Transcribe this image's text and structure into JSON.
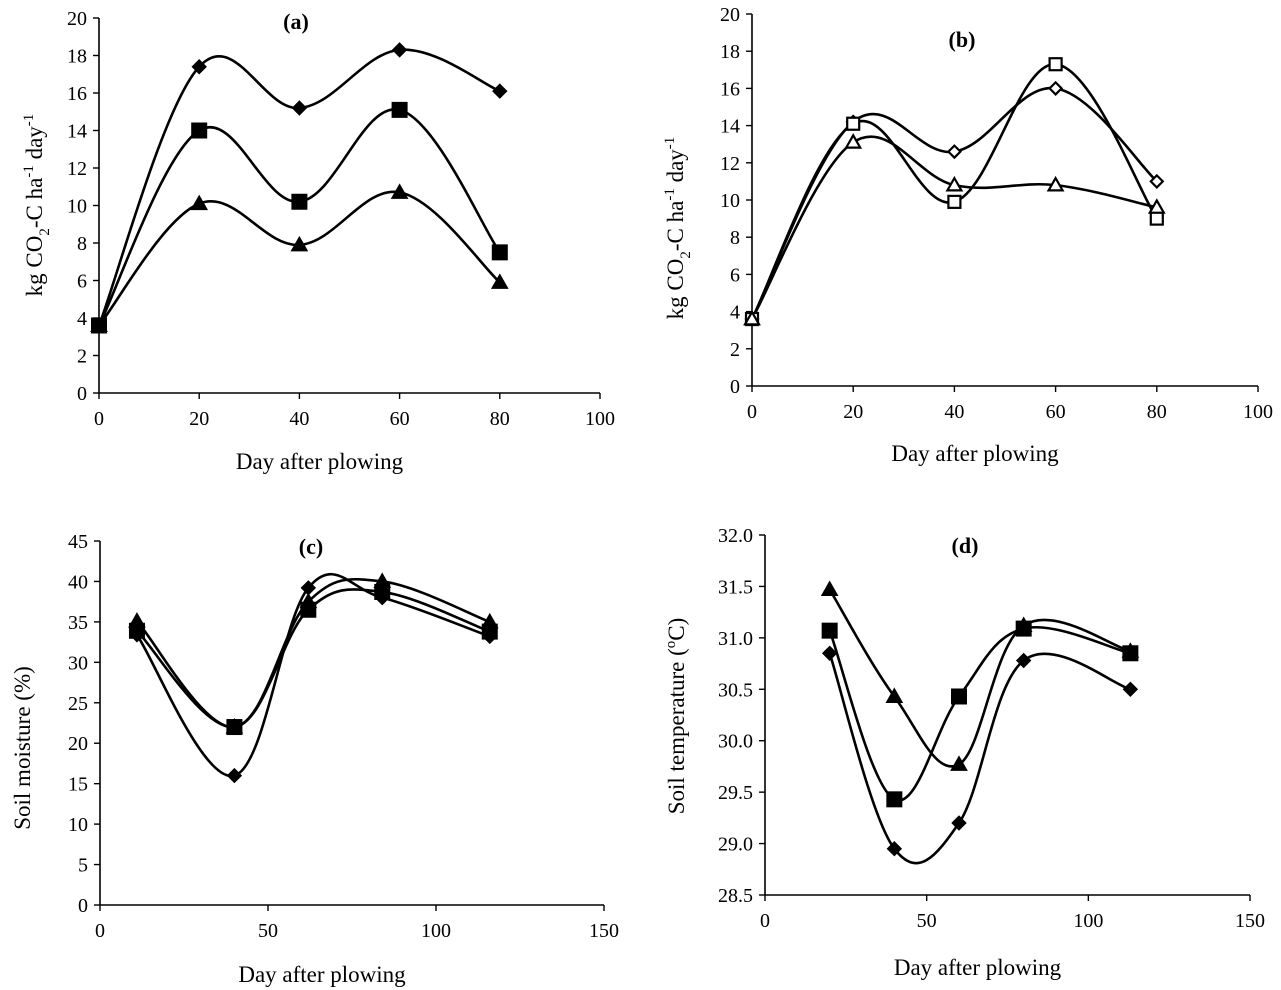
{
  "chart_data": [
    {
      "panel": "a",
      "type": "line",
      "title": "(a)",
      "xlabel": "Day after plowing",
      "ylabel_parts": [
        "kg CO",
        "2",
        "-C ha",
        "-1",
        " day",
        "-1"
      ],
      "xlim": [
        0,
        100
      ],
      "ylim": [
        0,
        20
      ],
      "xticks": [
        0,
        20,
        40,
        60,
        80,
        100
      ],
      "yticks": [
        0,
        2,
        4,
        6,
        8,
        10,
        12,
        14,
        16,
        18,
        20
      ],
      "xtick_labels": [
        "0",
        "20",
        "40",
        "60",
        "80",
        "100"
      ],
      "ytick_labels": [
        "0",
        "2",
        "4",
        "6",
        "8",
        "10",
        "12",
        "14",
        "16",
        "18",
        "20"
      ],
      "x": [
        0,
        20,
        40,
        60,
        80
      ],
      "series": [
        {
          "marker": "diamond",
          "filled": true,
          "values": [
            3.6,
            17.4,
            15.2,
            18.3,
            16.1
          ]
        },
        {
          "marker": "square",
          "filled": true,
          "values": [
            3.6,
            14.0,
            10.2,
            15.1,
            7.5
          ]
        },
        {
          "marker": "triangle",
          "filled": true,
          "values": [
            3.6,
            10.1,
            7.9,
            10.7,
            5.9
          ]
        }
      ]
    },
    {
      "panel": "b",
      "type": "line",
      "title": "(b)",
      "xlabel": "Day after plowing",
      "ylabel_parts": [
        "kg CO",
        "2",
        "-C ha",
        "-1",
        " day",
        "-1"
      ],
      "xlim": [
        0,
        100
      ],
      "ylim": [
        0,
        20
      ],
      "xticks": [
        0,
        20,
        40,
        60,
        80,
        100
      ],
      "yticks": [
        0,
        2,
        4,
        6,
        8,
        10,
        12,
        14,
        16,
        18,
        20
      ],
      "xtick_labels": [
        "0",
        "20",
        "40",
        "60",
        "80",
        "100"
      ],
      "ytick_labels": [
        "0",
        "2",
        "4",
        "6",
        "8",
        "10",
        "12",
        "14",
        "16",
        "18",
        "20"
      ],
      "x": [
        0,
        20,
        40,
        60,
        80
      ],
      "series": [
        {
          "marker": "diamond",
          "filled": false,
          "values": [
            3.6,
            14.2,
            12.6,
            16.0,
            11.0
          ]
        },
        {
          "marker": "square",
          "filled": false,
          "values": [
            3.6,
            14.1,
            9.9,
            17.3,
            9.0
          ]
        },
        {
          "marker": "triangle",
          "filled": false,
          "values": [
            3.6,
            13.1,
            10.8,
            10.8,
            9.6
          ]
        }
      ]
    },
    {
      "panel": "c",
      "type": "line",
      "title": "(c)",
      "xlabel": "Day after plowing",
      "ylabel_parts": [
        "Soil moisture (%)"
      ],
      "xlim": [
        0,
        150
      ],
      "ylim": [
        0,
        45
      ],
      "xticks": [
        0,
        50,
        100,
        150
      ],
      "yticks": [
        0,
        5,
        10,
        15,
        20,
        25,
        30,
        35,
        40,
        45
      ],
      "xtick_labels": [
        "0",
        "50",
        "100",
        "150"
      ],
      "ytick_labels": [
        "0",
        "5",
        "10",
        "15",
        "20",
        "25",
        "30",
        "35",
        "40",
        "45"
      ],
      "x": [
        11,
        40,
        62,
        84,
        116
      ],
      "series": [
        {
          "marker": "diamond",
          "filled": true,
          "values": [
            33.4,
            16.0,
            39.2,
            38.0,
            33.2
          ]
        },
        {
          "marker": "square",
          "filled": true,
          "values": [
            33.9,
            22.0,
            36.5,
            38.7,
            33.8
          ]
        },
        {
          "marker": "triangle",
          "filled": true,
          "values": [
            35.1,
            22.0,
            37.5,
            40.0,
            35.0
          ]
        }
      ]
    },
    {
      "panel": "d",
      "type": "line",
      "title": "(d)",
      "xlabel": "Day after plowing",
      "ylabel_parts": [
        "Soil temperature (",
        "o",
        "C)"
      ],
      "xlim": [
        0,
        150
      ],
      "ylim": [
        28.5,
        32.0
      ],
      "xticks": [
        0,
        50,
        100,
        150
      ],
      "yticks": [
        28.5,
        29.0,
        29.5,
        30.0,
        30.5,
        31.0,
        31.5,
        32.0
      ],
      "xtick_labels": [
        "0",
        "50",
        "100",
        "150"
      ],
      "ytick_labels": [
        "28.5",
        "29.0",
        "29.5",
        "30.0",
        "30.5",
        "31.0",
        "31.5",
        "32.0"
      ],
      "x": [
        20,
        40,
        60,
        80,
        113
      ],
      "series": [
        {
          "marker": "diamond",
          "filled": true,
          "values": [
            30.85,
            28.95,
            29.2,
            30.78,
            30.5
          ]
        },
        {
          "marker": "square",
          "filled": true,
          "values": [
            31.07,
            29.43,
            30.43,
            31.09,
            30.85
          ]
        },
        {
          "marker": "triangle",
          "filled": true,
          "values": [
            31.47,
            30.43,
            29.77,
            31.12,
            30.87
          ]
        }
      ]
    }
  ]
}
